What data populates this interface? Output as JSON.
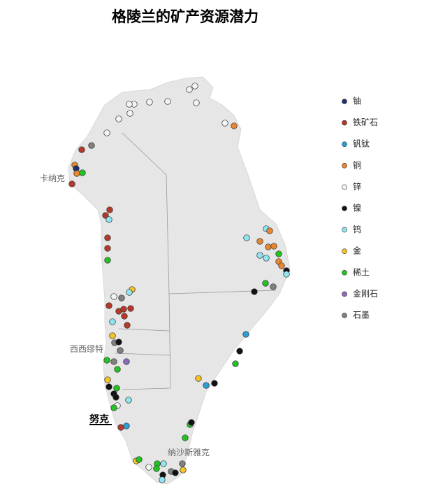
{
  "title": "格陵兰的矿产资源潜力",
  "legend": {
    "items": [
      {
        "label": "铀",
        "color": "#1f2f6b"
      },
      {
        "label": "铁矿石",
        "color": "#b5392a"
      },
      {
        "label": "钒钛",
        "color": "#2a9fd6"
      },
      {
        "label": "铜",
        "color": "#e8862f"
      },
      {
        "label": "锌",
        "color": "#f4f4f4"
      },
      {
        "label": "镍",
        "color": "#111111"
      },
      {
        "label": "钨",
        "color": "#8fe6f0"
      },
      {
        "label": "金",
        "color": "#f2c428"
      },
      {
        "label": "稀土",
        "color": "#22c322"
      },
      {
        "label": "金刚石",
        "color": "#8a6bb8"
      },
      {
        "label": "石墨",
        "color": "#808080"
      }
    ]
  },
  "places": [
    "卡纳克",
    "西西缪特",
    "努克",
    "纳沙斯雅克"
  ]
}
